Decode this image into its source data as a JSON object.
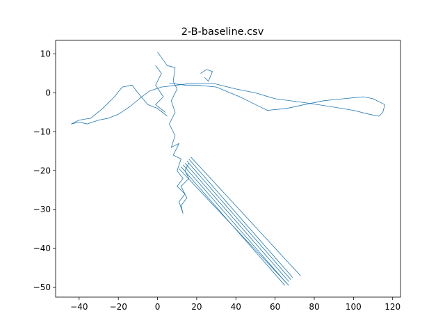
{
  "chart_data": {
    "type": "line",
    "title": "2-B-baseline.csv",
    "xlabel": "",
    "ylabel": "",
    "xlim": [
      -52,
      124
    ],
    "ylim": [
      -52.5,
      13.5
    ],
    "xticks": [
      -40,
      -20,
      0,
      20,
      40,
      60,
      80,
      100,
      120
    ],
    "yticks": [
      10,
      0,
      -10,
      -20,
      -30,
      -40,
      -50
    ],
    "grid": false,
    "legend": "none",
    "series": [
      {
        "color": "#1f77b4",
        "segments": [
          [
            [
              0,
              10.5
            ],
            [
              5,
              7
            ],
            [
              9,
              6.5
            ],
            [
              8,
              3
            ],
            [
              10,
              1
            ],
            [
              7,
              -2
            ],
            [
              9,
              -5
            ],
            [
              6,
              -8
            ],
            [
              9,
              -11
            ],
            [
              7,
              -14
            ],
            [
              11,
              -13
            ],
            [
              8,
              -16
            ],
            [
              12,
              -17
            ],
            [
              10,
              -20
            ],
            [
              13,
              -22
            ],
            [
              10,
              -24
            ],
            [
              14,
              -26
            ],
            [
              11,
              -28
            ],
            [
              13,
              -31
            ],
            [
              12,
              -29
            ],
            [
              15,
              -27
            ],
            [
              12,
              -24
            ],
            [
              16,
              -22
            ],
            [
              14,
              -20
            ],
            [
              16,
              -18
            ]
          ],
          [
            [
              -44,
              -8
            ],
            [
              -40,
              -7
            ],
            [
              -34,
              -6.5
            ],
            [
              -28,
              -4
            ],
            [
              -22,
              -1
            ],
            [
              -18,
              1.5
            ],
            [
              -13,
              2
            ],
            [
              -10,
              0
            ],
            [
              -5,
              -3
            ],
            [
              0,
              -4
            ],
            [
              5,
              -6
            ]
          ],
          [
            [
              -44,
              -8
            ],
            [
              -40,
              -7.5
            ],
            [
              -36,
              -8
            ],
            [
              -30,
              -7
            ],
            [
              -25,
              -6.5
            ],
            [
              -20,
              -5.5
            ],
            [
              -14,
              -3.5
            ],
            [
              -8,
              -1
            ],
            [
              -4,
              0.5
            ],
            [
              2,
              1.5
            ],
            [
              10,
              2
            ],
            [
              18,
              2.5
            ],
            [
              28,
              2.5
            ],
            [
              40,
              1
            ],
            [
              50,
              0
            ],
            [
              60,
              -1.5
            ],
            [
              75,
              -2.5
            ],
            [
              88,
              -3.5
            ],
            [
              100,
              -4.5
            ],
            [
              108,
              -5.5
            ],
            [
              113,
              -6
            ],
            [
              115,
              -5
            ]
          ],
          [
            [
              6,
              2.5
            ],
            [
              14,
              2
            ],
            [
              20,
              2
            ],
            [
              30,
              1.5
            ],
            [
              42,
              -1
            ],
            [
              50,
              -3
            ],
            [
              56,
              -4.5
            ],
            [
              66,
              -4
            ],
            [
              75,
              -3
            ],
            [
              85,
              -2
            ],
            [
              95,
              -1.5
            ],
            [
              105,
              -1
            ],
            [
              110,
              -1.5
            ],
            [
              116,
              -3
            ],
            [
              115,
              -5
            ]
          ],
          [
            [
              -1,
              7
            ],
            [
              2,
              5
            ],
            [
              -1,
              2
            ],
            [
              3,
              -1
            ],
            [
              -1,
              -3
            ],
            [
              4,
              -5
            ]
          ],
          [
            [
              22,
              5
            ],
            [
              25,
              6
            ],
            [
              28,
              5.5
            ],
            [
              26,
              3
            ],
            [
              24,
              4
            ]
          ],
          [
            [
              16,
              -17
            ],
            [
              69,
              -47.5
            ]
          ],
          [
            [
              15,
              -17.5
            ],
            [
              68,
              -48
            ]
          ],
          [
            [
              14,
              -18
            ],
            [
              67,
              -48.5
            ]
          ],
          [
            [
              13,
              -18.5
            ],
            [
              66,
              -49
            ]
          ],
          [
            [
              12,
              -19
            ],
            [
              65,
              -49.5
            ]
          ],
          [
            [
              17,
              -16.5
            ],
            [
              73,
              -47
            ]
          ],
          [
            [
              11,
              -19.5
            ],
            [
              67,
              -49.5
            ]
          ]
        ]
      }
    ]
  }
}
